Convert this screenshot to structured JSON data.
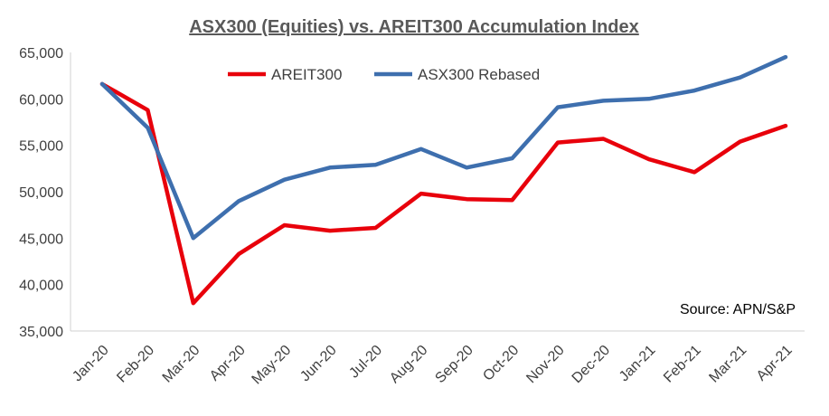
{
  "chart_data": {
    "type": "line",
    "title": "ASX300 (Equities) vs. AREIT300 Accumulation Index",
    "source_note": "Source: APN/S&P",
    "xlabel": "",
    "ylabel": "",
    "ylim": [
      35000,
      65000
    ],
    "y_ticks": [
      "35,000",
      "40,000",
      "45,000",
      "50,000",
      "55,000",
      "60,000",
      "65,000"
    ],
    "y_tick_values": [
      35000,
      40000,
      45000,
      50000,
      55000,
      60000,
      65000
    ],
    "categories": [
      "Jan-20",
      "Feb-20",
      "Mar-20",
      "Apr-20",
      "May-20",
      "Jun-20",
      "Jul-20",
      "Aug-20",
      "Sep-20",
      "Oct-20",
      "Nov-20",
      "Dec-20",
      "Jan-21",
      "Feb-21",
      "Mar-21",
      "Apr-21"
    ],
    "grid": false,
    "legend": "top-left",
    "series": [
      {
        "name": "AREIT300",
        "color": "#e8000b",
        "values": [
          61600,
          58800,
          38000,
          43300,
          46400,
          45800,
          46100,
          49800,
          49200,
          49100,
          55300,
          55700,
          53500,
          52100,
          55400,
          57100
        ]
      },
      {
        "name": "ASX300 Rebased",
        "color": "#3e6fae",
        "values": [
          61600,
          56900,
          45000,
          49000,
          51300,
          52600,
          52900,
          54600,
          52600,
          53600,
          59100,
          59800,
          60000,
          60900,
          62300,
          64500
        ]
      }
    ]
  }
}
